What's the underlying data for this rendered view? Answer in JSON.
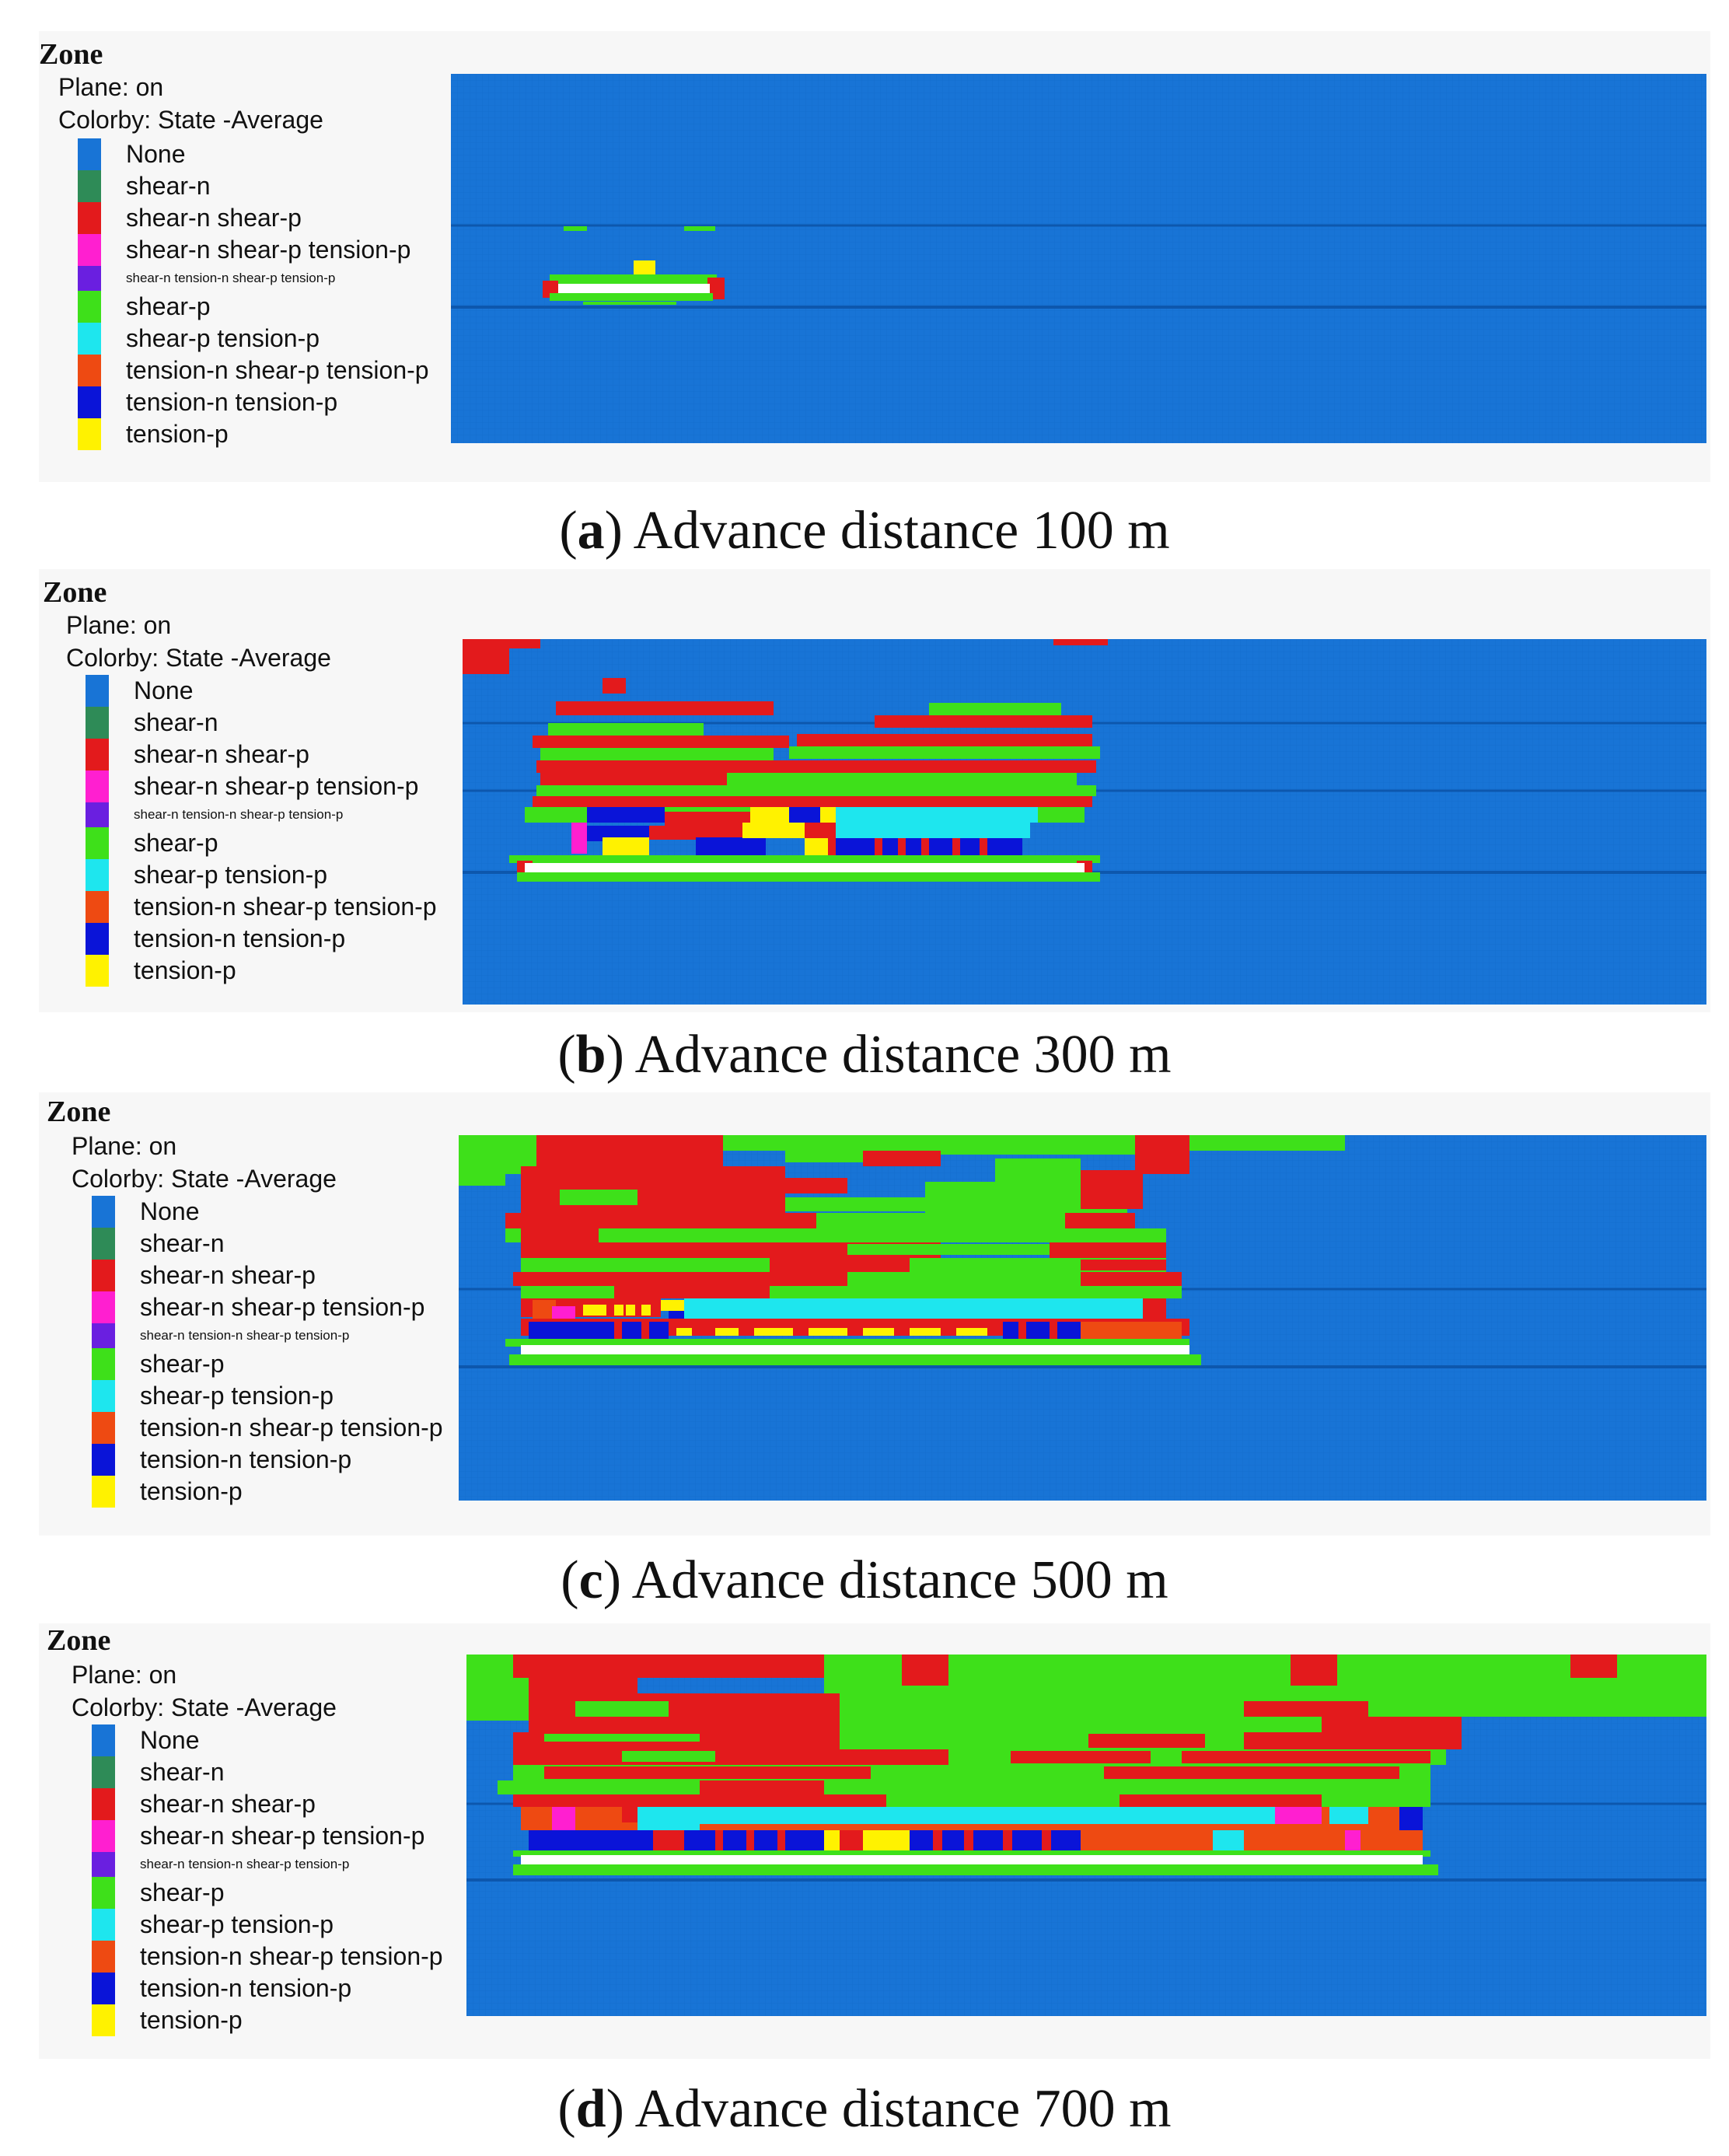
{
  "legend": {
    "title": "Zone",
    "plane": "Plane: on",
    "colorby": "Colorby: State  -Average",
    "entries": [
      {
        "label": "None",
        "color": "#1874d6"
      },
      {
        "label": "shear-n",
        "color": "#2e8b57"
      },
      {
        "label": "shear-n shear-p",
        "color": "#e31a1c"
      },
      {
        "label": "shear-n shear-p tension-p",
        "color": "#ff1fd0"
      },
      {
        "label": "shear-n tension-n shear-p tension-p",
        "color": "#6a1fe0"
      },
      {
        "label": "shear-p",
        "color": "#3ee01a"
      },
      {
        "label": "shear-p tension-p",
        "color": "#1ee6ee"
      },
      {
        "label": "tension-n shear-p tension-p",
        "color": "#ee4a12"
      },
      {
        "label": "tension-n tension-p",
        "color": "#0a14d8"
      },
      {
        "label": "tension-p",
        "color": "#fff200"
      }
    ]
  },
  "panels": [
    {
      "letter": "a",
      "caption": "Advance distance 100 m"
    },
    {
      "letter": "b",
      "caption": "Advance distance 300 m"
    },
    {
      "letter": "c",
      "caption": "Advance distance 500 m"
    },
    {
      "letter": "d",
      "caption": "Advance distance 700 m"
    }
  ]
}
